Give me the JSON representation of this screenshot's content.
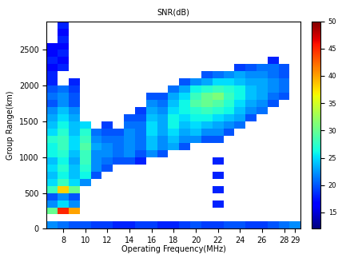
{
  "chart_data": {
    "type": "heatmap",
    "title": "SNR(dB)",
    "x_label": "Operating Frequency(MHz)",
    "y_label": "Group Range(km)",
    "xlim": [
      6.5,
      29.5
    ],
    "xticks": [
      8,
      10,
      12,
      14,
      16,
      18,
      20,
      22,
      24,
      26,
      28,
      29
    ],
    "ylim": [
      0,
      2900
    ],
    "yticks": [
      0,
      500,
      1000,
      1500,
      2000,
      2500
    ],
    "grid": false,
    "x_edges": [
      6.5,
      7.5,
      8.5,
      9.5,
      10.5,
      11.5,
      12.5,
      13.5,
      14.5,
      15.5,
      16.5,
      17.5,
      18.5,
      19.5,
      20.5,
      21.5,
      22.5,
      23.5,
      24.5,
      25.5,
      26.5,
      27.5,
      28.5,
      29.5
    ],
    "y_edges": [
      0,
      100,
      200,
      300,
      400,
      500,
      600,
      700,
      800,
      900,
      1000,
      1100,
      1200,
      1300,
      1400,
      1500,
      1600,
      1700,
      1800,
      1900,
      2000,
      2100,
      2200,
      2300,
      2400,
      2500,
      2600,
      2700,
      2800,
      2900
    ],
    "color_range": [
      12,
      50
    ],
    "color_ticks": [
      15,
      20,
      25,
      30,
      35,
      40,
      45,
      50
    ],
    "cells": [
      [
        22,
        21,
        20,
        20,
        19,
        19,
        18,
        18,
        19,
        19,
        18,
        18,
        19,
        20,
        19,
        19,
        20,
        20,
        19,
        19,
        20,
        21,
        22
      ],
      [
        null,
        null,
        null,
        null,
        null,
        null,
        null,
        null,
        null,
        null,
        null,
        null,
        null,
        null,
        null,
        null,
        null,
        null,
        null,
        null,
        null,
        null,
        null
      ],
      [
        30,
        45,
        40,
        null,
        null,
        null,
        null,
        null,
        null,
        null,
        null,
        null,
        null,
        null,
        null,
        null,
        null,
        null,
        null,
        null,
        null,
        null,
        null
      ],
      [
        22,
        25,
        22,
        null,
        null,
        null,
        null,
        null,
        null,
        null,
        null,
        null,
        null,
        null,
        null,
        18,
        null,
        null,
        null,
        null,
        null,
        null,
        null
      ],
      [
        20,
        22,
        20,
        null,
        null,
        null,
        null,
        null,
        null,
        null,
        null,
        null,
        null,
        null,
        null,
        null,
        null,
        null,
        null,
        null,
        null,
        null,
        null
      ],
      [
        28,
        38,
        30,
        null,
        null,
        null,
        null,
        null,
        null,
        null,
        null,
        null,
        null,
        null,
        null,
        18,
        null,
        null,
        null,
        null,
        null,
        null,
        null
      ],
      [
        25,
        28,
        25,
        22,
        null,
        null,
        null,
        null,
        null,
        null,
        null,
        null,
        null,
        null,
        null,
        null,
        null,
        null,
        null,
        null,
        null,
        null,
        null
      ],
      [
        24,
        26,
        24,
        26,
        20,
        null,
        null,
        null,
        null,
        null,
        null,
        null,
        null,
        null,
        null,
        18,
        null,
        null,
        null,
        null,
        null,
        null,
        null
      ],
      [
        25,
        27,
        24,
        27,
        22,
        20,
        null,
        null,
        null,
        null,
        null,
        null,
        null,
        null,
        null,
        null,
        null,
        null,
        null,
        null,
        null,
        null,
        null
      ],
      [
        24,
        26,
        23,
        28,
        22,
        21,
        20,
        20,
        18,
        null,
        null,
        null,
        null,
        null,
        null,
        18,
        null,
        null,
        null,
        null,
        null,
        null,
        null
      ],
      [
        26,
        27,
        24,
        28,
        22,
        22,
        21,
        22,
        20,
        22,
        20,
        null,
        null,
        null,
        null,
        null,
        null,
        null,
        null,
        null,
        null,
        null,
        null
      ],
      [
        26,
        28,
        25,
        29,
        23,
        22,
        21,
        22,
        21,
        24,
        22,
        23,
        20,
        null,
        null,
        null,
        null,
        null,
        null,
        null,
        null,
        null,
        null
      ],
      [
        27,
        28,
        25,
        28,
        22,
        21,
        21,
        22,
        21,
        24,
        22,
        24,
        22,
        22,
        20,
        20,
        null,
        null,
        null,
        null,
        null,
        null,
        null
      ],
      [
        25,
        27,
        24,
        27,
        21,
        20,
        20,
        22,
        21,
        25,
        23,
        25,
        23,
        24,
        22,
        22,
        20,
        null,
        null,
        null,
        null,
        null,
        null
      ],
      [
        24,
        26,
        24,
        25,
        null,
        19,
        null,
        21,
        21,
        25,
        23,
        26,
        24,
        25,
        24,
        23,
        22,
        21,
        null,
        null,
        null,
        null,
        null
      ],
      [
        23,
        25,
        23,
        null,
        null,
        null,
        null,
        20,
        20,
        24,
        23,
        26,
        25,
        26,
        26,
        25,
        24,
        23,
        20,
        null,
        null,
        null,
        null
      ],
      [
        22,
        24,
        22,
        null,
        null,
        null,
        null,
        null,
        19,
        23,
        22,
        25,
        26,
        27,
        28,
        27,
        26,
        24,
        22,
        21,
        null,
        null,
        null
      ],
      [
        20,
        22,
        20,
        null,
        null,
        null,
        null,
        null,
        null,
        22,
        21,
        24,
        26,
        29,
        30,
        29,
        27,
        25,
        23,
        22,
        20,
        null,
        null
      ],
      [
        21,
        22,
        20,
        null,
        null,
        null,
        null,
        null,
        null,
        20,
        20,
        23,
        25,
        28,
        30,
        31,
        28,
        26,
        24,
        23,
        21,
        20,
        null
      ],
      [
        20,
        21,
        19,
        null,
        null,
        null,
        null,
        null,
        null,
        null,
        null,
        21,
        23,
        26,
        27,
        28,
        27,
        26,
        24,
        23,
        22,
        21,
        null
      ],
      [
        18,
        null,
        18,
        null,
        null,
        null,
        null,
        null,
        null,
        null,
        null,
        null,
        20,
        22,
        23,
        25,
        25,
        24,
        23,
        23,
        22,
        21,
        null
      ],
      [
        18,
        null,
        null,
        null,
        null,
        null,
        null,
        null,
        null,
        null,
        null,
        null,
        null,
        null,
        20,
        21,
        22,
        23,
        22,
        22,
        21,
        20,
        null
      ],
      [
        17,
        18,
        null,
        null,
        null,
        null,
        null,
        null,
        null,
        null,
        null,
        null,
        null,
        null,
        null,
        null,
        null,
        19,
        20,
        21,
        21,
        20,
        null
      ],
      [
        18,
        17,
        null,
        null,
        null,
        null,
        null,
        null,
        null,
        null,
        null,
        null,
        null,
        null,
        null,
        null,
        null,
        null,
        null,
        null,
        18,
        null,
        null
      ],
      [
        17,
        18,
        null,
        null,
        null,
        null,
        null,
        null,
        null,
        null,
        null,
        null,
        null,
        null,
        null,
        null,
        null,
        null,
        null,
        null,
        null,
        null,
        null
      ],
      [
        17,
        17,
        null,
        null,
        null,
        null,
        null,
        null,
        null,
        null,
        null,
        null,
        null,
        null,
        null,
        null,
        null,
        null,
        null,
        null,
        null,
        null,
        null
      ],
      [
        null,
        18,
        null,
        null,
        null,
        null,
        null,
        null,
        null,
        null,
        null,
        null,
        null,
        null,
        null,
        null,
        null,
        null,
        null,
        null,
        null,
        null,
        null
      ],
      [
        null,
        17,
        null,
        null,
        null,
        null,
        null,
        null,
        null,
        null,
        null,
        null,
        null,
        null,
        null,
        null,
        null,
        null,
        null,
        null,
        null,
        null,
        null
      ],
      [
        null,
        18,
        null,
        null,
        null,
        null,
        null,
        null,
        null,
        null,
        null,
        null,
        null,
        null,
        null,
        null,
        null,
        null,
        null,
        null,
        null,
        null,
        null
      ]
    ]
  }
}
